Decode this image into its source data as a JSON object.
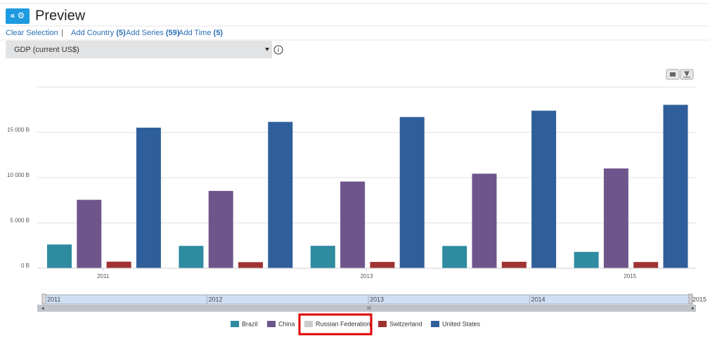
{
  "header": {
    "title": "Preview"
  },
  "toolbar": {
    "clear": "Clear Selection",
    "separator": "|",
    "add_country": "Add Country",
    "add_country_count": "(5)",
    "add_series": "Add Series",
    "add_series_count": "(59)",
    "add_time": "Add Time",
    "add_time_count": "(5)"
  },
  "dropdown": {
    "label": "GDP (current US$)"
  },
  "chart_data": {
    "type": "bar",
    "categories": [
      "2011",
      null,
      "2013",
      null,
      "2015"
    ],
    "ylim": [
      0,
      20000
    ],
    "yticks": [
      {
        "value": 0,
        "label": "0 B"
      },
      {
        "value": 5000,
        "label": "5 000 B"
      },
      {
        "value": 10000,
        "label": "10 000 B"
      },
      {
        "value": 15000,
        "label": "15 000 B"
      }
    ],
    "grid": true,
    "series": [
      {
        "name": "Brazil",
        "color": "#2e8ba0",
        "visible": true,
        "values": [
          2616,
          2465,
          2473,
          2456,
          1802
        ]
      },
      {
        "name": "China",
        "color": "#6e568c",
        "visible": true,
        "values": [
          7552,
          8532,
          9570,
          10438,
          11016
        ]
      },
      {
        "name": "Russian Federation",
        "color": "#cccccc",
        "visible": false,
        "values": [
          null,
          null,
          null,
          null,
          null
        ]
      },
      {
        "name": "Switzerland",
        "color": "#a03232",
        "visible": true,
        "values": [
          722,
          668,
          690,
          709,
          680
        ]
      },
      {
        "name": "United States",
        "color": "#2f5f9b",
        "visible": true,
        "values": [
          15518,
          16155,
          16692,
          17393,
          18037
        ]
      }
    ]
  },
  "navigator": {
    "labels": [
      "2011",
      "2012",
      "2013",
      "2014",
      "2015"
    ]
  }
}
